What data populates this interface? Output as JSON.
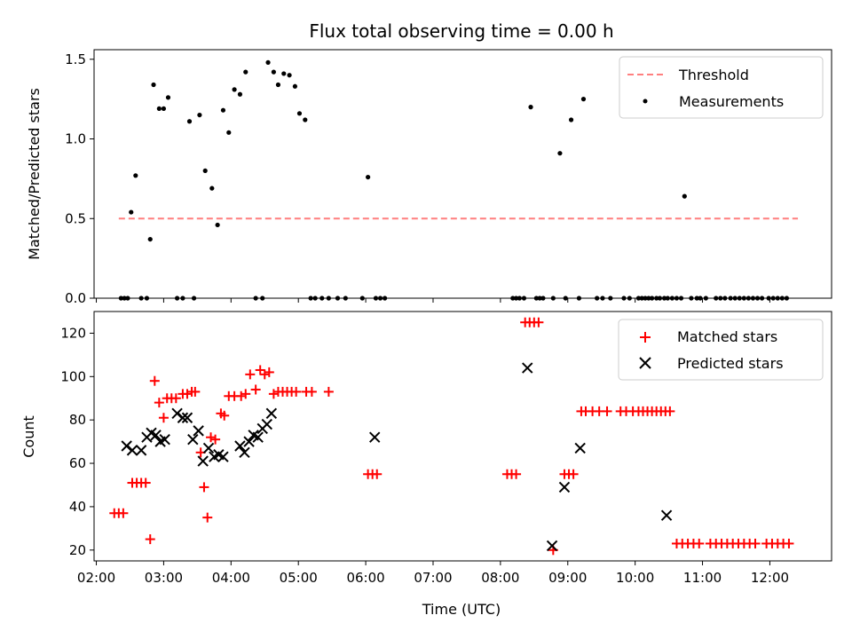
{
  "chart_data": {
    "title": "Flux total observing time = 0.00 h",
    "xlabel": "Time (UTC)",
    "x_ticks": [
      "02:00",
      "03:00",
      "04:00",
      "05:00",
      "06:00",
      "07:00",
      "08:00",
      "09:00",
      "10:00",
      "11:00",
      "12:00"
    ],
    "xlim": [
      "01:58",
      "12:55"
    ],
    "top": {
      "type": "scatter",
      "ylabel": "Matched/Predicted stars",
      "ylim": [
        0,
        1.56
      ],
      "y_ticks": [
        0.0,
        0.5,
        1.0,
        1.5
      ],
      "legend": [
        "Threshold",
        "Measurements"
      ],
      "legend_position": "top-right",
      "threshold": {
        "name": "Threshold",
        "value": 0.5,
        "x_start": "02:20",
        "x_end": "12:25",
        "color": "#ff7f7f"
      },
      "measurements": {
        "name": "Measurements",
        "color": "#000000",
        "points": [
          [
            "02:22",
            0
          ],
          [
            "02:25",
            0
          ],
          [
            "02:28",
            0
          ],
          [
            "02:31",
            0.54
          ],
          [
            "02:35",
            0.77
          ],
          [
            "02:40",
            0
          ],
          [
            "02:45",
            0
          ],
          [
            "02:48",
            0.37
          ],
          [
            "02:51",
            1.34
          ],
          [
            "02:56",
            1.19
          ],
          [
            "03:00",
            1.19
          ],
          [
            "03:04",
            1.26
          ],
          [
            "03:12",
            0
          ],
          [
            "03:17",
            0
          ],
          [
            "03:23",
            1.11
          ],
          [
            "03:27",
            0
          ],
          [
            "03:32",
            1.15
          ],
          [
            "03:37",
            0.8
          ],
          [
            "03:43",
            0.69
          ],
          [
            "03:48",
            0.46
          ],
          [
            "03:53",
            1.18
          ],
          [
            "03:58",
            1.04
          ],
          [
            "04:03",
            1.31
          ],
          [
            "04:08",
            1.28
          ],
          [
            "04:13",
            1.42
          ],
          [
            "04:22",
            0
          ],
          [
            "04:28",
            0
          ],
          [
            "04:33",
            1.48
          ],
          [
            "04:38",
            1.42
          ],
          [
            "04:42",
            1.34
          ],
          [
            "04:47",
            1.41
          ],
          [
            "04:52",
            1.4
          ],
          [
            "04:57",
            1.33
          ],
          [
            "05:01",
            1.16
          ],
          [
            "05:06",
            1.12
          ],
          [
            "05:11",
            0
          ],
          [
            "05:15",
            0
          ],
          [
            "05:21",
            0
          ],
          [
            "05:27",
            0
          ],
          [
            "05:35",
            0
          ],
          [
            "05:42",
            0
          ],
          [
            "05:57",
            0
          ],
          [
            "06:02",
            0.76
          ],
          [
            "06:09",
            0
          ],
          [
            "06:13",
            0
          ],
          [
            "06:17",
            0
          ],
          [
            "08:11",
            0
          ],
          [
            "08:14",
            0
          ],
          [
            "08:17",
            0
          ],
          [
            "08:21",
            0
          ],
          [
            "08:27",
            1.2
          ],
          [
            "08:32",
            0
          ],
          [
            "08:35",
            0
          ],
          [
            "08:38",
            0
          ],
          [
            "08:47",
            0
          ],
          [
            "08:53",
            0.91
          ],
          [
            "08:58",
            0
          ],
          [
            "09:03",
            1.12
          ],
          [
            "09:10",
            0
          ],
          [
            "09:14",
            1.25
          ],
          [
            "09:26",
            0
          ],
          [
            "09:31",
            0
          ],
          [
            "09:38",
            0
          ],
          [
            "09:50",
            0
          ],
          [
            "09:55",
            0
          ],
          [
            "10:03",
            0
          ],
          [
            "10:06",
            0
          ],
          [
            "10:09",
            0
          ],
          [
            "10:12",
            0
          ],
          [
            "10:15",
            0
          ],
          [
            "10:19",
            0
          ],
          [
            "10:22",
            0
          ],
          [
            "10:26",
            0
          ],
          [
            "10:29",
            0
          ],
          [
            "10:33",
            0
          ],
          [
            "10:37",
            0
          ],
          [
            "10:41",
            0
          ],
          [
            "10:44",
            0.64
          ],
          [
            "10:50",
            0
          ],
          [
            "10:55",
            0
          ],
          [
            "10:58",
            0
          ],
          [
            "11:03",
            0
          ],
          [
            "11:12",
            0
          ],
          [
            "11:16",
            0
          ],
          [
            "11:20",
            0
          ],
          [
            "11:25",
            0
          ],
          [
            "11:29",
            0
          ],
          [
            "11:33",
            0
          ],
          [
            "11:37",
            0
          ],
          [
            "11:41",
            0
          ],
          [
            "11:45",
            0
          ],
          [
            "11:49",
            0
          ],
          [
            "11:53",
            0
          ],
          [
            "11:59",
            0
          ],
          [
            "12:03",
            0
          ],
          [
            "12:07",
            0
          ],
          [
            "12:11",
            0
          ],
          [
            "12:15",
            0
          ]
        ]
      }
    },
    "bottom": {
      "type": "scatter",
      "ylabel": "Count",
      "ylim": [
        15,
        130
      ],
      "y_ticks": [
        20,
        40,
        60,
        80,
        100,
        120
      ],
      "legend": [
        "Matched stars",
        "Predicted stars"
      ],
      "legend_position": "top-right",
      "matched": {
        "name": "Matched stars",
        "color": "#ff0000",
        "points": [
          [
            "02:16",
            37
          ],
          [
            "02:20",
            37
          ],
          [
            "02:24",
            37
          ],
          [
            "02:32",
            51
          ],
          [
            "02:36",
            51
          ],
          [
            "02:40",
            51
          ],
          [
            "02:44",
            51
          ],
          [
            "02:48",
            25
          ],
          [
            "02:52",
            98
          ],
          [
            "02:56",
            88
          ],
          [
            "03:00",
            81
          ],
          [
            "03:03",
            90
          ],
          [
            "03:07",
            90
          ],
          [
            "03:11",
            90
          ],
          [
            "03:17",
            92
          ],
          [
            "03:21",
            92
          ],
          [
            "03:25",
            93
          ],
          [
            "03:28",
            93
          ],
          [
            "03:33",
            65
          ],
          [
            "03:36",
            49
          ],
          [
            "03:39",
            35
          ],
          [
            "03:42",
            72
          ],
          [
            "03:46",
            71
          ],
          [
            "03:51",
            83
          ],
          [
            "03:54",
            82
          ],
          [
            "03:58",
            91
          ],
          [
            "04:03",
            91
          ],
          [
            "04:09",
            91
          ],
          [
            "04:13",
            92
          ],
          [
            "04:17",
            101
          ],
          [
            "04:22",
            94
          ],
          [
            "04:26",
            103
          ],
          [
            "04:30",
            101
          ],
          [
            "04:34",
            102
          ],
          [
            "04:38",
            92
          ],
          [
            "04:42",
            93
          ],
          [
            "04:46",
            93
          ],
          [
            "04:50",
            93
          ],
          [
            "04:54",
            93
          ],
          [
            "04:58",
            93
          ],
          [
            "05:07",
            93
          ],
          [
            "05:12",
            93
          ],
          [
            "05:27",
            93
          ],
          [
            "06:02",
            55
          ],
          [
            "06:06",
            55
          ],
          [
            "06:10",
            55
          ],
          [
            "08:06",
            55
          ],
          [
            "08:10",
            55
          ],
          [
            "08:14",
            55
          ],
          [
            "08:22",
            125
          ],
          [
            "08:26",
            125
          ],
          [
            "08:30",
            125
          ],
          [
            "08:34",
            125
          ],
          [
            "08:47",
            20
          ],
          [
            "08:57",
            55
          ],
          [
            "09:01",
            55
          ],
          [
            "09:05",
            55
          ],
          [
            "09:12",
            84
          ],
          [
            "09:16",
            84
          ],
          [
            "09:22",
            84
          ],
          [
            "09:28",
            84
          ],
          [
            "09:35",
            84
          ],
          [
            "09:47",
            84
          ],
          [
            "09:52",
            84
          ],
          [
            "09:58",
            84
          ],
          [
            "10:03",
            84
          ],
          [
            "10:07",
            84
          ],
          [
            "10:11",
            84
          ],
          [
            "10:15",
            84
          ],
          [
            "10:19",
            84
          ],
          [
            "10:23",
            84
          ],
          [
            "10:27",
            84
          ],
          [
            "10:31",
            84
          ],
          [
            "10:37",
            23
          ],
          [
            "10:42",
            23
          ],
          [
            "10:47",
            23
          ],
          [
            "10:52",
            23
          ],
          [
            "10:57",
            23
          ],
          [
            "11:07",
            23
          ],
          [
            "11:12",
            23
          ],
          [
            "11:17",
            23
          ],
          [
            "11:22",
            23
          ],
          [
            "11:27",
            23
          ],
          [
            "11:32",
            23
          ],
          [
            "11:37",
            23
          ],
          [
            "11:42",
            23
          ],
          [
            "11:47",
            23
          ],
          [
            "11:57",
            23
          ],
          [
            "12:02",
            23
          ],
          [
            "12:07",
            23
          ],
          [
            "12:12",
            23
          ],
          [
            "12:17",
            23
          ]
        ]
      },
      "predicted": {
        "name": "Predicted stars",
        "color": "#000000",
        "points": [
          [
            "02:27",
            68
          ],
          [
            "02:32",
            66
          ],
          [
            "02:40",
            66
          ],
          [
            "02:45",
            72
          ],
          [
            "02:49",
            74
          ],
          [
            "02:53",
            73
          ],
          [
            "02:57",
            70
          ],
          [
            "03:01",
            71
          ],
          [
            "03:12",
            83
          ],
          [
            "03:17",
            81
          ],
          [
            "03:21",
            81
          ],
          [
            "03:26",
            71
          ],
          [
            "03:31",
            75
          ],
          [
            "03:35",
            61
          ],
          [
            "03:40",
            67
          ],
          [
            "03:45",
            63
          ],
          [
            "03:49",
            64
          ],
          [
            "03:53",
            63
          ],
          [
            "04:08",
            68
          ],
          [
            "04:12",
            65
          ],
          [
            "04:16",
            70
          ],
          [
            "04:20",
            73
          ],
          [
            "04:24",
            72
          ],
          [
            "04:28",
            76
          ],
          [
            "04:32",
            78
          ],
          [
            "04:36",
            83
          ],
          [
            "06:08",
            72
          ],
          [
            "08:24",
            104
          ],
          [
            "08:46",
            22
          ],
          [
            "08:57",
            49
          ],
          [
            "09:11",
            67
          ],
          [
            "10:28",
            36
          ]
        ]
      }
    }
  }
}
